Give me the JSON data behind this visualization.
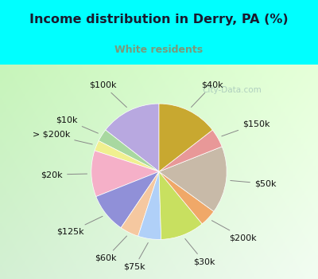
{
  "title": "Income distribution in Derry, PA (%)",
  "subtitle": "White residents",
  "title_color": "#1a1a2e",
  "subtitle_color": "#7a9a7a",
  "background_top": "#00ffff",
  "bg_gradient_start": "#f0fff0",
  "bg_gradient_end": "#c8eedd",
  "labels": [
    "$100k",
    "$10k",
    "> $200k",
    "$20k",
    "$125k",
    "$60k",
    "$75k",
    "$30k",
    "$200k",
    "$50k",
    "$150k",
    "$40k"
  ],
  "sizes": [
    14.5,
    3.0,
    2.5,
    11.0,
    9.5,
    4.5,
    5.5,
    10.5,
    4.0,
    16.0,
    4.5,
    14.5
  ],
  "colors": [
    "#b8a8e0",
    "#a8d8a0",
    "#f0f090",
    "#f5b0c8",
    "#9090d8",
    "#f5c8a0",
    "#b0d0f8",
    "#c8e060",
    "#f0a868",
    "#c8baa8",
    "#e89898",
    "#c8a830"
  ],
  "startangle": 90,
  "label_fontsize": 8,
  "watermark": "City-Data.com"
}
